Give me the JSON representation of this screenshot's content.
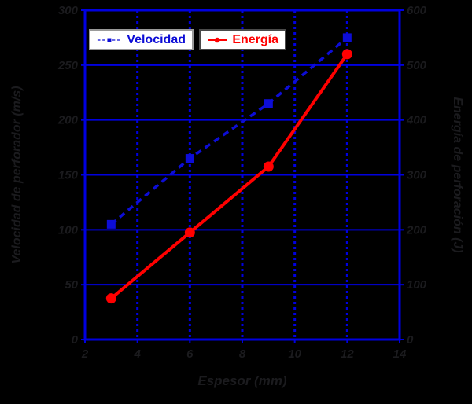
{
  "figure": {
    "background": "#000000",
    "axis_text_color": "#1b1b1e"
  },
  "colors": {
    "frame": "#0000e0",
    "grid": "#0000e0",
    "velocidad_series": "#0d0dd6",
    "energia_series": "#ff0000",
    "legend_bg": "#ffffff",
    "legend_border_velocidad": "#9a9a9a",
    "legend_border_energia": "#4a4a4a"
  },
  "chart_data": {
    "type": "line",
    "x": [
      3,
      6,
      9,
      12
    ],
    "series": [
      {
        "name": "Velocidad",
        "axis": "left",
        "values": [
          105,
          165,
          215,
          275
        ],
        "color": "#0d0dd6",
        "line_style": "dashed",
        "marker": "square"
      },
      {
        "name": "Energía",
        "axis": "right",
        "values": [
          75,
          195,
          315,
          520
        ],
        "color": "#ff0000",
        "line_style": "solid",
        "marker": "circle"
      }
    ],
    "xlabel": "Espesor (mm)",
    "ylabel_left": "Velocidad de perforador (m/s)",
    "ylabel_right": "Energía de perforación (J)",
    "xlim": [
      2,
      14
    ],
    "xticks": [
      "2",
      "4",
      "6",
      "8",
      "10",
      "12",
      "14"
    ],
    "ylim_left": [
      0,
      300
    ],
    "yticks_left": [
      "0",
      "50",
      "100",
      "150",
      "200",
      "250",
      "300"
    ],
    "ylim_right": [
      0,
      600
    ],
    "yticks_right": [
      "0",
      "100",
      "200",
      "300",
      "400",
      "500",
      "600"
    ],
    "grid": {
      "vertical": "dotted",
      "horizontal": "solid",
      "visible": true
    },
    "legend": {
      "position": "top-inside",
      "entries": [
        "Velocidad",
        "Energía"
      ]
    }
  }
}
